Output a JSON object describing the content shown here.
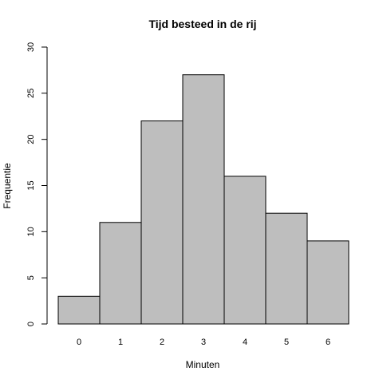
{
  "chart_data": {
    "type": "bar",
    "title": "Tijd besteed in de rij",
    "xlabel": "Minuten",
    "ylabel": "Frequentie",
    "categories": [
      "0",
      "1",
      "2",
      "3",
      "4",
      "5",
      "6"
    ],
    "values": [
      3,
      11,
      22,
      27,
      16,
      12,
      9
    ],
    "ylim": [
      0,
      30
    ],
    "yticks": [
      0,
      5,
      10,
      15,
      20,
      25,
      30
    ],
    "bar_color": "#bebebe",
    "border_color": "#000000",
    "grid": false,
    "legend": "none"
  }
}
